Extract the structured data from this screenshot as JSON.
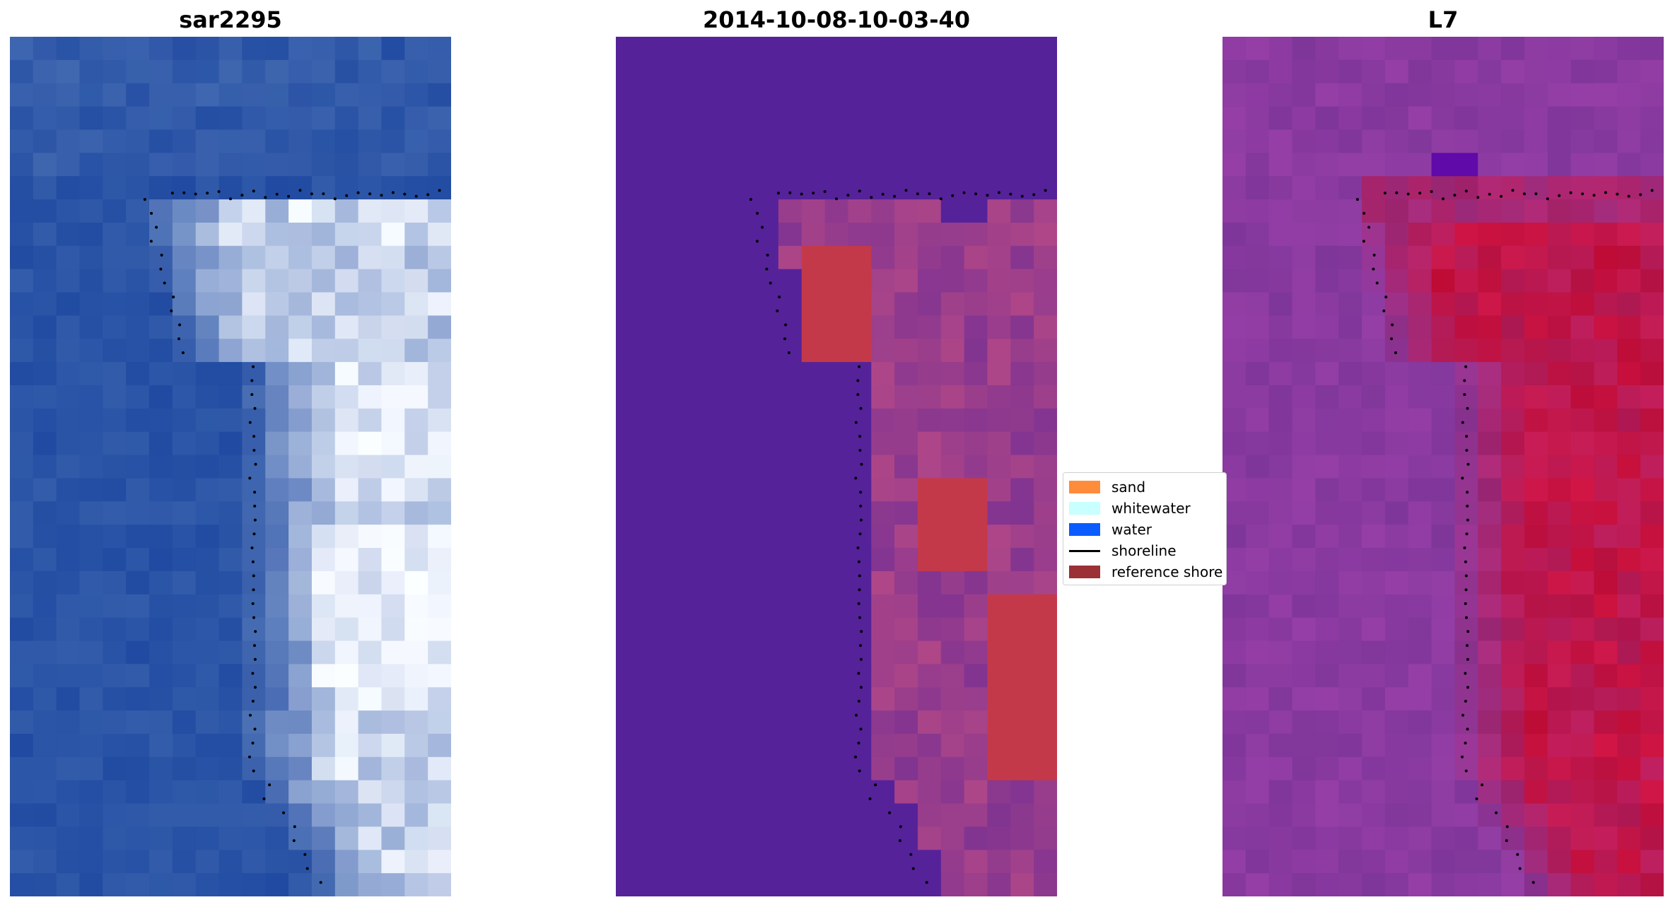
{
  "figure": {
    "titles": [
      "sar2295",
      "2014-10-08-10-03-40",
      "L7"
    ]
  },
  "legend": {
    "placement": "center, between middle and right panel",
    "items": [
      {
        "label": "sand",
        "type": "patch",
        "color": "#ff8c3a"
      },
      {
        "label": "whitewater",
        "type": "patch",
        "color": "#c8ffff"
      },
      {
        "label": "water",
        "type": "patch",
        "color": "#0a5cff"
      },
      {
        "label": "shoreline",
        "type": "line",
        "color": "#000000"
      },
      {
        "label": "reference shore",
        "type": "patch",
        "color": "#9b3036"
      }
    ]
  },
  "chart_data": [
    {
      "type": "heatmap",
      "title": "sar2295",
      "grid_cols": 19,
      "grid_rows": 37,
      "axes": "off",
      "colors": {
        "water": "#2a54a6",
        "foam": "#f4f8ff"
      }
    },
    {
      "type": "heatmap",
      "title": "2014-10-08-10-03-40",
      "grid_cols": 19,
      "grid_rows": 37,
      "axes": "off",
      "colors": {
        "background": "#55229a",
        "sand": "#b84a86",
        "reference_shore": "#c4394a"
      }
    },
    {
      "type": "heatmap",
      "title": "L7",
      "grid_cols": 19,
      "grid_rows": 37,
      "axes": "off",
      "colors": {
        "background": "#8a3aa0",
        "land": "#c8103c"
      }
    }
  ]
}
